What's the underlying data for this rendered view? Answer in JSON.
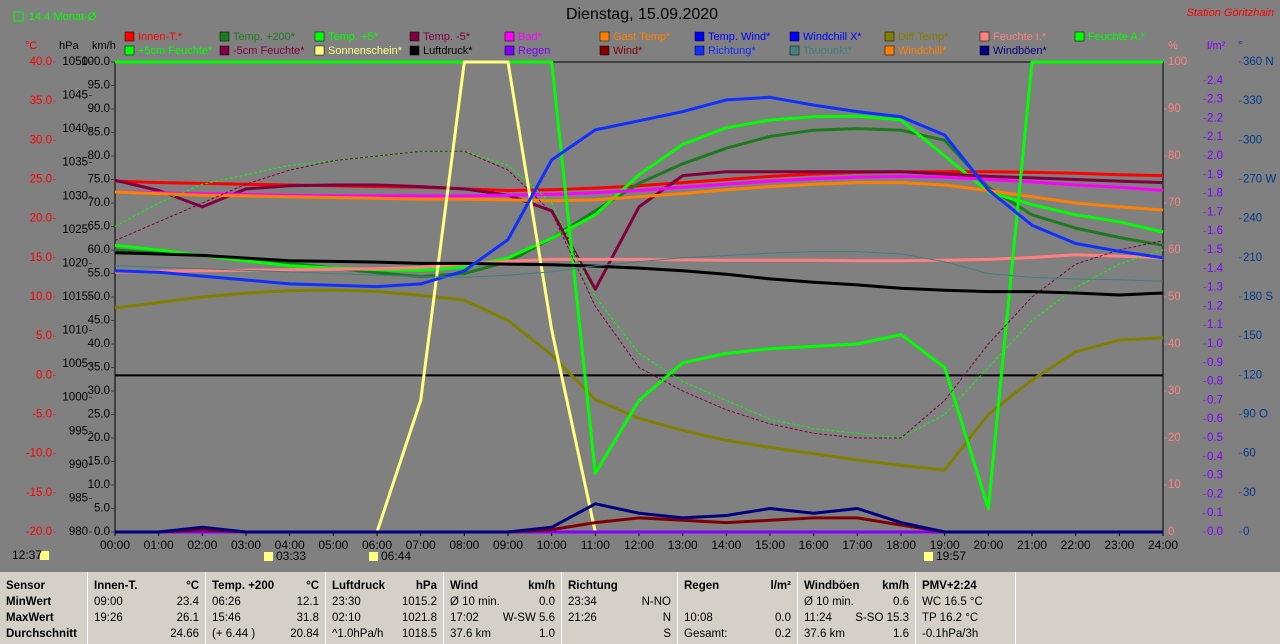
{
  "chart_data": {
    "type": "line",
    "title": "Dienstag, 15.09.2020",
    "station": "Station Göritzhain",
    "month_avg": "14.4 Monat-Ø",
    "x": [
      "00:00",
      "01:00",
      "02:00",
      "03:00",
      "04:00",
      "05:00",
      "06:00",
      "07:00",
      "08:00",
      "09:00",
      "10:00",
      "11:00",
      "12:00",
      "13:00",
      "14:00",
      "15:00",
      "16:00",
      "17:00",
      "18:00",
      "19:00",
      "20:00",
      "21:00",
      "22:00",
      "23:00",
      "24:00"
    ],
    "axes": {
      "temp": {
        "label": "°C",
        "color": "#ff0000",
        "lim": [
          -20,
          40
        ],
        "ticks": [
          {
            "value": 40,
            "label": "40.0"
          },
          {
            "value": 35,
            "label": "35.0"
          },
          {
            "value": 30,
            "label": "30.0"
          },
          {
            "value": 25,
            "label": "25.0"
          },
          {
            "value": 20,
            "label": "20.0"
          },
          {
            "value": 15,
            "label": "15.0"
          },
          {
            "value": 10,
            "label": "10.0"
          },
          {
            "value": 5,
            "label": "5.0"
          },
          {
            "value": 0,
            "label": "0.0"
          },
          {
            "value": -5,
            "label": "-5.0"
          },
          {
            "value": -10,
            "label": "-10.0"
          },
          {
            "value": -15,
            "label": "-15.0"
          },
          {
            "value": -20,
            "label": "-20.0"
          }
        ]
      },
      "hpa": {
        "label": "hPa",
        "color": "#000000",
        "lim": [
          980,
          1050
        ],
        "ticks": [
          1050,
          1045,
          1040,
          1035,
          1030,
          1025,
          1020,
          1015,
          1010,
          1005,
          1000,
          995,
          990,
          985,
          980
        ]
      },
      "kmh": {
        "label": "km/h",
        "color": "#000000",
        "lim": [
          0,
          100
        ],
        "ticks": [
          {
            "value": 100,
            "label": "100.0"
          },
          {
            "value": 95,
            "label": "95.0"
          },
          {
            "value": 90,
            "label": "90.0"
          },
          {
            "value": 85,
            "label": "85.0"
          },
          {
            "value": 80,
            "label": "80.0"
          },
          {
            "value": 75,
            "label": "75.0"
          },
          {
            "value": 70,
            "label": "70.0"
          },
          {
            "value": 65,
            "label": "65.0"
          },
          {
            "value": 60,
            "label": "60.0"
          },
          {
            "value": 55,
            "label": "55.0"
          },
          {
            "value": 50,
            "label": "50.0"
          },
          {
            "value": 45,
            "label": "45.0"
          },
          {
            "value": 40,
            "label": "40.0"
          },
          {
            "value": 35,
            "label": "35.0"
          },
          {
            "value": 30,
            "label": "30.0"
          },
          {
            "value": 25,
            "label": "25.0"
          },
          {
            "value": 20,
            "label": "20.0"
          },
          {
            "value": 15,
            "label": "15.0"
          },
          {
            "value": 10,
            "label": "10.0"
          },
          {
            "value": 5,
            "label": "5.0"
          },
          {
            "value": 0,
            "label": "0.0"
          }
        ]
      },
      "pct": {
        "label": "%",
        "color": "#ff8080",
        "lim": [
          0,
          100
        ],
        "ticks": [
          100,
          90,
          80,
          70,
          60,
          50,
          40,
          30,
          20,
          10,
          0
        ]
      },
      "lm2": {
        "label": "l/m²",
        "color": "#8000ff",
        "lim": [
          0,
          2.5
        ],
        "ticks": [
          2.4,
          2.3,
          2.2,
          2.1,
          {
            "value": 2,
            "label": "2.0"
          },
          1.9,
          1.8,
          1.7,
          1.6,
          1.5,
          1.4,
          1.3,
          1.2,
          1.1,
          {
            "value": 1,
            "label": "1.0"
          },
          0.9,
          0.8,
          0.7,
          0.6,
          0.5,
          0.4,
          0.3,
          0.2,
          0.1,
          {
            "value": 0,
            "label": "0.0"
          }
        ]
      },
      "deg": {
        "label": "°",
        "color": "#003a8c",
        "lim": [
          0,
          360
        ],
        "ticks": [
          {
            "value": 360,
            "label": "360 N"
          },
          330,
          300,
          {
            "value": 270,
            "label": "270 W"
          },
          240,
          210,
          {
            "value": 180,
            "label": "180 S"
          },
          150,
          120,
          {
            "value": 90,
            "label": "90 O"
          },
          60,
          30,
          0
        ]
      }
    },
    "series": [
      {
        "name": "Innen-T.*",
        "color": "#ff0000",
        "axis": "temp",
        "values": [
          24.8,
          24.6,
          24.5,
          24.4,
          24.3,
          24.2,
          24.1,
          24.0,
          23.8,
          23.6,
          23.7,
          23.9,
          24.2,
          24.6,
          25.0,
          25.4,
          25.7,
          25.9,
          26.0,
          26.0,
          26.0,
          25.9,
          25.8,
          25.6,
          25.5
        ]
      },
      {
        "name": "Temp. +200*",
        "color": "#1e7a1e",
        "axis": "temp",
        "values": [
          16.0,
          15.6,
          15.3,
          14.8,
          14.3,
          13.7,
          13.1,
          12.6,
          13.0,
          14.5,
          17.5,
          21.0,
          24.5,
          27.0,
          29.0,
          30.5,
          31.3,
          31.5,
          31.3,
          30.0,
          24.0,
          20.5,
          18.8,
          17.6,
          16.6
        ]
      },
      {
        "name": "Temp. +5*",
        "color": "#00ff00",
        "axis": "temp",
        "values": [
          16.6,
          16.0,
          15.3,
          14.6,
          14.0,
          13.7,
          13.5,
          13.4,
          13.8,
          15.0,
          17.5,
          20.5,
          25.6,
          29.5,
          31.6,
          32.6,
          33.0,
          33.1,
          32.6,
          28.0,
          23.4,
          21.8,
          20.5,
          19.6,
          18.3
        ]
      },
      {
        "name": "Temp. -5*",
        "color": "#800040",
        "axis": "temp",
        "values": [
          24.9,
          23.6,
          21.5,
          23.8,
          24.2,
          24.3,
          24.3,
          24.1,
          23.8,
          23.0,
          21.0,
          11.0,
          21.5,
          25.5,
          26.0,
          26.0,
          26.0,
          26.0,
          26.0,
          25.7,
          25.4,
          25.2,
          25.0,
          24.8,
          24.6
        ]
      },
      {
        "name": "Bad*",
        "color": "#ff00ff",
        "axis": "temp",
        "values": [
          23.4,
          23.3,
          23.2,
          23.1,
          23.0,
          22.9,
          22.9,
          22.9,
          22.9,
          23.0,
          23.1,
          23.3,
          23.6,
          24.0,
          24.4,
          24.8,
          25.1,
          25.3,
          25.4,
          25.3,
          25.0,
          24.7,
          24.3,
          24.0,
          23.6
        ]
      },
      {
        "name": "Gast Temp*",
        "color": "#ff8000",
        "axis": "temp",
        "values": [
          23.4,
          23.2,
          23.0,
          22.9,
          22.8,
          22.7,
          22.6,
          22.5,
          22.5,
          22.4,
          22.3,
          22.4,
          22.8,
          23.2,
          23.7,
          24.1,
          24.4,
          24.6,
          24.6,
          24.3,
          23.6,
          22.8,
          22.0,
          21.5,
          21.1
        ]
      },
      {
        "name": "Temp. Wind*",
        "color": "#0000ff",
        "axis": "temp",
        "values": [
          null,
          null,
          null,
          null,
          null,
          null,
          null,
          null,
          null,
          null,
          null,
          null,
          null,
          null,
          null,
          null,
          null,
          null,
          null,
          null,
          null,
          null,
          null,
          null,
          null
        ]
      },
      {
        "name": "Windchill X*",
        "color": "#0000ff",
        "axis": "temp",
        "values": [
          null,
          null,
          null,
          null,
          null,
          null,
          null,
          null,
          null,
          null,
          null,
          null,
          null,
          null,
          null,
          null,
          null,
          null,
          null,
          null,
          null,
          null,
          null,
          null,
          null
        ]
      },
      {
        "name": "Diff Temp*",
        "color": "#808000",
        "axis": "temp",
        "values": [
          8.6,
          9.3,
          10.0,
          10.5,
          10.8,
          10.9,
          10.7,
          10.2,
          9.6,
          7.0,
          2.6,
          -3.1,
          -5.5,
          -7.0,
          -8.3,
          -9.2,
          -10.0,
          -10.8,
          -11.5,
          -12.1,
          -5.0,
          -0.6,
          3.0,
          4.5,
          4.8
        ]
      },
      {
        "name": "Feuchte I.*",
        "color": "#ff8080",
        "axis": "pct",
        "values": [
          55.3,
          55.5,
          55.6,
          55.7,
          55.8,
          55.9,
          56.0,
          56.3,
          57.0,
          57.6,
          58.0,
          58.0,
          58.0,
          57.9,
          57.8,
          57.8,
          57.8,
          57.7,
          57.7,
          57.8,
          58.0,
          58.4,
          59.0,
          58.7,
          58.3
        ]
      },
      {
        "name": "Feuchte A.*",
        "color": "#00ff00",
        "axis": "pct",
        "values": [
          100,
          100,
          100,
          100,
          100,
          100,
          100,
          100,
          100,
          100,
          100,
          12.5,
          28,
          36,
          38,
          39,
          39.5,
          40,
          42,
          35,
          5,
          100,
          100,
          100,
          100
        ]
      },
      {
        "name": "+5cm Feuchte*",
        "color": "#00ff00",
        "axis": "pct",
        "style": "dotted",
        "values": [
          65,
          70,
          74,
          76,
          78,
          79,
          80,
          81,
          81,
          78,
          70,
          50,
          38,
          32,
          28,
          24,
          22,
          21,
          20,
          25,
          35,
          45,
          52,
          57,
          60
        ]
      },
      {
        "name": "-5cm Feuchte*",
        "color": "#800040",
        "axis": "pct",
        "style": "dotted",
        "values": [
          62,
          66,
          70,
          74,
          77,
          79,
          80,
          81,
          81,
          77,
          68,
          48,
          35,
          30,
          26,
          23,
          21,
          20,
          20,
          28,
          40,
          50,
          57,
          60,
          62
        ]
      },
      {
        "name": "Sonnenschein*",
        "color": "#ffff80",
        "axis": "pct",
        "values": [
          0,
          0,
          0,
          0,
          0,
          0,
          0,
          28,
          100,
          100,
          43,
          0,
          0,
          0,
          0,
          0,
          0,
          0,
          0,
          0,
          0,
          0,
          0,
          0,
          0
        ]
      },
      {
        "name": "Luftdruck*",
        "color": "#000000",
        "axis": "hpa",
        "values": [
          1021.6,
          1021.4,
          1021.2,
          1020.8,
          1020.4,
          1020.3,
          1020.2,
          1020.0,
          1020.0,
          1019.9,
          1019.8,
          1019.6,
          1019.3,
          1018.9,
          1018.4,
          1017.7,
          1017.2,
          1016.8,
          1016.3,
          1016.0,
          1015.8,
          1015.8,
          1015.6,
          1015.3,
          1015.6
        ]
      },
      {
        "name": "Regen",
        "color": "#8000ff",
        "axis": "lm2",
        "values": [
          0,
          0,
          0,
          0,
          0,
          0,
          0,
          0,
          0,
          0,
          0,
          0,
          0,
          0,
          0,
          0,
          0,
          0,
          0,
          0,
          0,
          0,
          0,
          0,
          0
        ]
      },
      {
        "name": "Wind*",
        "color": "#800000",
        "axis": "kmh",
        "values": [
          0,
          0,
          0.5,
          0,
          0,
          0,
          0,
          0,
          0,
          0,
          0.5,
          2,
          3,
          2.5,
          2,
          2.5,
          3,
          3,
          1.5,
          0,
          0,
          0,
          0,
          0,
          0
        ]
      },
      {
        "name": "Richtung*",
        "color": "#1030ff",
        "axis": "deg",
        "values": [
          200,
          199,
          196,
          193,
          190,
          189,
          188,
          190,
          200,
          224,
          285,
          308,
          315,
          322,
          331,
          333,
          327,
          322,
          318,
          304,
          262,
          235,
          221,
          215,
          210
        ]
      },
      {
        "name": "Taupunkt*",
        "color": "#408080",
        "axis": "temp",
        "style": "thin",
        "values": [
          14,
          13.8,
          13.6,
          13.4,
          13.2,
          13,
          12.8,
          12.6,
          12.5,
          12.8,
          13.2,
          14,
          14.5,
          15,
          15.3,
          15.6,
          15.8,
          15.8,
          15.5,
          14.5,
          13,
          12.5,
          12.3,
          12.2,
          12
        ]
      },
      {
        "name": "Windchill*",
        "color": "#ff8000",
        "axis": "temp",
        "values": [
          null,
          null,
          null,
          null,
          null,
          null,
          null,
          null,
          null,
          null,
          null,
          null,
          null,
          null,
          null,
          null,
          null,
          null,
          null,
          null,
          null,
          null,
          null,
          null,
          null
        ]
      },
      {
        "name": "Windböen*",
        "color": "#000080",
        "axis": "kmh",
        "values": [
          0,
          0,
          1,
          0,
          0,
          0,
          0,
          0,
          0,
          0,
          1,
          6,
          4,
          3,
          3.5,
          5,
          4,
          5,
          2,
          0,
          0,
          0,
          0,
          0,
          0
        ]
      }
    ],
    "markers": [
      "12:37",
      "03:33",
      "06:44",
      "19:57"
    ]
  },
  "stats": {
    "row_labels": [
      "Sensor",
      "MinWert",
      "MaxWert",
      "Durchschnitt"
    ],
    "groups": [
      {
        "header": "Innen-T.",
        "unit": "°C",
        "rows": [
          [
            "09:00",
            "23.4"
          ],
          [
            "19:26",
            "26.1"
          ],
          [
            "24.66"
          ]
        ]
      },
      {
        "header": "Temp. +200",
        "unit": "°C",
        "rows": [
          [
            "06:26",
            "12.1"
          ],
          [
            "15:46",
            "31.8"
          ],
          [
            "(+ 6.44 )",
            "20.84"
          ]
        ]
      },
      {
        "header": "Luftdruck",
        "unit": "hPa",
        "rows": [
          [
            "23:30",
            "1015.2"
          ],
          [
            "02:10",
            "1021.8"
          ],
          [
            "^1.0hPa/h",
            "1018.5"
          ]
        ]
      },
      {
        "header": "Wind",
        "unit": "km/h",
        "rows": [
          [
            "Ø 10 min.",
            "0.0"
          ],
          [
            "17:02",
            "W-SW 5.6"
          ],
          [
            "37.6 km",
            "1.0"
          ]
        ]
      },
      {
        "header": "Richtung",
        "rows": [
          [
            "23:34",
            "N-NO"
          ],
          [
            "21:26",
            "N"
          ],
          [
            "S"
          ]
        ]
      },
      {
        "header": "Regen",
        "unit": "l/m²",
        "rows": [
          [],
          [
            "10:08",
            "0.0"
          ],
          [
            "Gesamt:",
            "0.2"
          ]
        ]
      },
      {
        "header": "Windböen",
        "unit": "km/h",
        "rows": [
          [
            "Ø 10 min.",
            "0.6"
          ],
          [
            "11:24",
            "S-SO 15.3"
          ],
          [
            "37.6 km",
            "1.6"
          ]
        ]
      },
      {
        "header": "PMV+2:24",
        "rows": [
          [
            "WC 16.5 °C"
          ],
          [
            "TP 16.2 °C"
          ],
          [
            "-0.1hPa/3h"
          ]
        ]
      }
    ]
  }
}
